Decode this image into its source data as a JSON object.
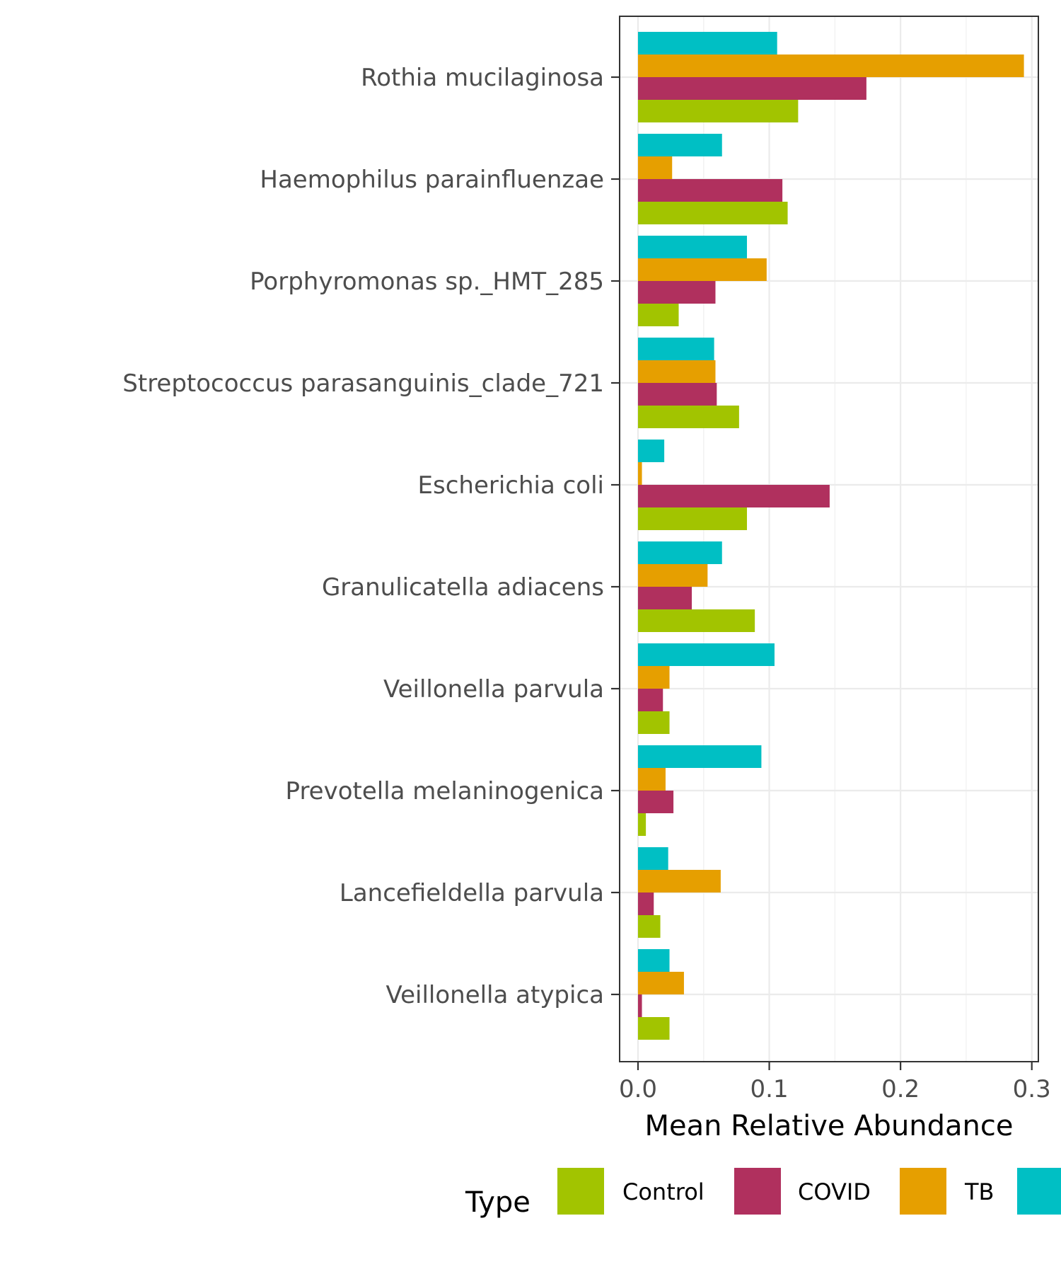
{
  "chart_data": {
    "type": "bar",
    "orientation": "horizontal",
    "categories": [
      "Rothia mucilaginosa",
      "Haemophilus parainfluenzae",
      "Porphyromonas sp._HMT_285",
      "Streptococcus parasanguinis_clade_721",
      "Escherichia coli",
      "Granulicatella adiacens",
      "Veillonella parvula",
      "Prevotella melaninogenica",
      "Lancefieldella parvula",
      "Veillonella atypica"
    ],
    "series": [
      {
        "name": "Control",
        "color": "#a2c400",
        "values": [
          0.122,
          0.114,
          0.031,
          0.077,
          0.083,
          0.089,
          0.024,
          0.006,
          0.017,
          0.024
        ]
      },
      {
        "name": "COVID",
        "color": "#b0305e",
        "values": [
          0.174,
          0.11,
          0.059,
          0.06,
          0.146,
          0.041,
          0.019,
          0.027,
          0.012,
          0.003
        ]
      },
      {
        "name": "TB",
        "color": "#e69f00",
        "values": [
          0.294,
          0.026,
          0.098,
          0.059,
          0.003,
          0.053,
          0.024,
          0.021,
          0.063,
          0.035
        ]
      },
      {
        "name": "",
        "color": "#00bfc4",
        "values": [
          0.106,
          0.064,
          0.083,
          0.058,
          0.02,
          0.064,
          0.104,
          0.094,
          0.023,
          0.024
        ]
      }
    ],
    "xlabel": "Mean Relative Abundance",
    "xlim": [
      -0.014,
      0.305
    ],
    "xticks": [
      "0.0",
      "0.1",
      "0.2",
      "0.3"
    ],
    "grid": true,
    "legend": {
      "title": "Type",
      "position": "bottom"
    }
  }
}
